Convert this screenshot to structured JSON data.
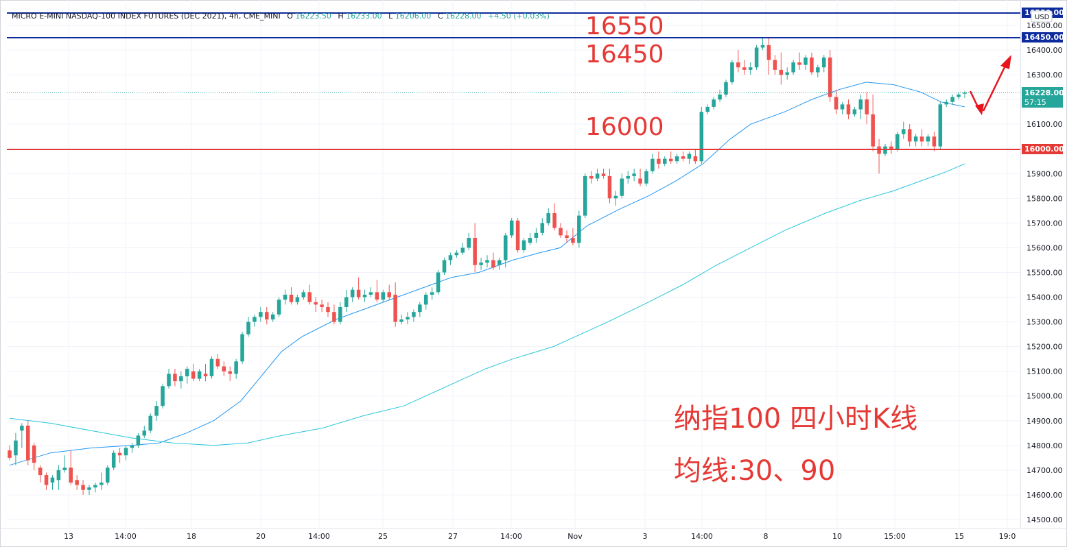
{
  "header": {
    "symbol": "MICRO E-MINI NASDAQ-100 INDEX FUTURES (DEC 2021), 4h, CME_MINI",
    "o_label": "O",
    "o_value": "16223.50",
    "h_label": "H",
    "h_value": "16233.00",
    "l_label": "L",
    "l_value": "16206.00",
    "c_label": "C",
    "c_value": "16228.00",
    "change": "+4.50 (+0.03%)"
  },
  "currency": "USD",
  "price_tags": {
    "top_line": "16550.00",
    "upper_line": "16450.00",
    "last_price": "16228.00",
    "countdown": "57:15",
    "support_line": "16000.00"
  },
  "annotations": {
    "label_16550": "16550",
    "label_16450": "16450",
    "label_16000": "16000",
    "note_line1": "纳指100 四小时K线",
    "note_line2": "均线:30、90"
  },
  "colors": {
    "up": "#26a69a",
    "down": "#ef5350",
    "ma30": "#2196f3",
    "ma90": "#26c6da",
    "blue_line": "#0d2b9c",
    "red_line": "#e53935",
    "arrow": "#e8141b"
  },
  "chart_data": {
    "type": "candlestick",
    "title": "MICRO E-MINI NASDAQ-100 INDEX FUTURES (DEC 2021), 4h, CME_MINI",
    "y_range": [
      14450,
      16600
    ],
    "y_ticks": [
      14500,
      14600,
      14700,
      14800,
      14900,
      15000,
      15100,
      15200,
      15300,
      15400,
      15500,
      15600,
      15700,
      15800,
      15900,
      16000,
      16100,
      16200,
      16300,
      16400,
      16500
    ],
    "x_tick_labels": [
      "13",
      "14:00",
      "18",
      "20",
      "14:00",
      "25",
      "27",
      "14:00",
      "Nov",
      "3",
      "14:00",
      "8",
      "10",
      "15:00",
      "15",
      "19:0"
    ],
    "horizontal_lines": [
      {
        "price": 16550,
        "color": "blue"
      },
      {
        "price": 16450,
        "color": "blue"
      },
      {
        "price": 16000,
        "color": "red"
      }
    ],
    "series": [
      {
        "name": "MA 30",
        "points": [
          [
            0,
            14720
          ],
          [
            60,
            14770
          ],
          [
            120,
            14790
          ],
          [
            180,
            14800
          ],
          [
            220,
            14810
          ],
          [
            260,
            14850
          ],
          [
            300,
            14900
          ],
          [
            340,
            14980
          ],
          [
            370,
            15080
          ],
          [
            400,
            15180
          ],
          [
            430,
            15240
          ],
          [
            480,
            15310
          ],
          [
            520,
            15350
          ],
          [
            560,
            15390
          ],
          [
            610,
            15440
          ],
          [
            650,
            15480
          ],
          [
            690,
            15500
          ],
          [
            740,
            15550
          ],
          [
            780,
            15580
          ],
          [
            810,
            15600
          ],
          [
            850,
            15690
          ],
          [
            900,
            15760
          ],
          [
            940,
            15810
          ],
          [
            980,
            15870
          ],
          [
            1020,
            15940
          ],
          [
            1060,
            16040
          ],
          [
            1090,
            16100
          ],
          [
            1140,
            16150
          ],
          [
            1180,
            16200
          ],
          [
            1220,
            16240
          ],
          [
            1260,
            16270
          ],
          [
            1300,
            16260
          ],
          [
            1340,
            16230
          ],
          [
            1370,
            16190
          ],
          [
            1405,
            16170
          ]
        ]
      },
      {
        "name": "MA 90",
        "points": [
          [
            0,
            14910
          ],
          [
            60,
            14890
          ],
          [
            120,
            14860
          ],
          [
            180,
            14830
          ],
          [
            240,
            14810
          ],
          [
            300,
            14800
          ],
          [
            350,
            14810
          ],
          [
            400,
            14840
          ],
          [
            460,
            14870
          ],
          [
            520,
            14920
          ],
          [
            580,
            14960
          ],
          [
            620,
            15010
          ],
          [
            660,
            15060
          ],
          [
            700,
            15110
          ],
          [
            740,
            15150
          ],
          [
            800,
            15200
          ],
          [
            840,
            15250
          ],
          [
            880,
            15300
          ],
          [
            940,
            15380
          ],
          [
            990,
            15450
          ],
          [
            1040,
            15530
          ],
          [
            1090,
            15600
          ],
          [
            1140,
            15670
          ],
          [
            1200,
            15740
          ],
          [
            1250,
            15790
          ],
          [
            1300,
            15830
          ],
          [
            1350,
            15880
          ],
          [
            1380,
            15910
          ],
          [
            1405,
            15940
          ]
        ]
      }
    ],
    "candles": [
      [
        14780,
        14800,
        14750,
        14740
      ],
      [
        14760,
        14850,
        14820,
        14720
      ],
      [
        14860,
        14890,
        14880,
        14790
      ],
      [
        14880,
        14900,
        14740,
        14720
      ],
      [
        14800,
        14810,
        14730,
        14700
      ],
      [
        14710,
        14720,
        14680,
        14650
      ],
      [
        14680,
        14690,
        14640,
        14620
      ],
      [
        14650,
        14680,
        14670,
        14620
      ],
      [
        14660,
        14720,
        14700,
        14620
      ],
      [
        14700,
        14760,
        14710,
        14690
      ],
      [
        14710,
        14780,
        14650,
        14640
      ],
      [
        14660,
        14680,
        14640,
        14620
      ],
      [
        14640,
        14660,
        14620,
        14600
      ],
      [
        14620,
        14640,
        14630,
        14600
      ],
      [
        14630,
        14650,
        14640,
        14610
      ],
      [
        14640,
        14690,
        14650,
        14620
      ],
      [
        14650,
        14720,
        14710,
        14640
      ],
      [
        14710,
        14780,
        14770,
        14700
      ],
      [
        14770,
        14790,
        14760,
        14730
      ],
      [
        14760,
        14800,
        14790,
        14740
      ],
      [
        14790,
        14810,
        14800,
        14770
      ],
      [
        14800,
        14850,
        14840,
        14790
      ],
      [
        14840,
        14880,
        14860,
        14830
      ],
      [
        14860,
        14930,
        14920,
        14850
      ],
      [
        14920,
        14980,
        14960,
        14900
      ],
      [
        14960,
        15050,
        15040,
        14950
      ],
      [
        15040,
        15110,
        15090,
        15030
      ],
      [
        15090,
        15110,
        15060,
        15040
      ],
      [
        15060,
        15100,
        15080,
        15030
      ],
      [
        15080,
        15120,
        15110,
        15050
      ],
      [
        15100,
        15130,
        15070,
        15060
      ],
      [
        15070,
        15110,
        15100,
        15060
      ],
      [
        15090,
        15130,
        15080,
        15060
      ],
      [
        15080,
        15160,
        15150,
        15070
      ],
      [
        15150,
        15170,
        15120,
        15110
      ],
      [
        15120,
        15140,
        15100,
        15080
      ],
      [
        15100,
        15120,
        15090,
        15060
      ],
      [
        15090,
        15150,
        15140,
        15070
      ],
      [
        15140,
        15260,
        15250,
        15130
      ],
      [
        15250,
        15320,
        15300,
        15240
      ],
      [
        15300,
        15330,
        15320,
        15280
      ],
      [
        15320,
        15360,
        15340,
        15300
      ],
      [
        15340,
        15360,
        15310,
        15290
      ],
      [
        15310,
        15340,
        15330,
        15300
      ],
      [
        15330,
        15400,
        15390,
        15320
      ],
      [
        15390,
        15430,
        15410,
        15370
      ],
      [
        15410,
        15440,
        15380,
        15370
      ],
      [
        15380,
        15410,
        15400,
        15370
      ],
      [
        15400,
        15430,
        15420,
        15390
      ],
      [
        15420,
        15450,
        15380,
        15370
      ],
      [
        15380,
        15400,
        15370,
        15340
      ],
      [
        15370,
        15390,
        15360,
        15340
      ],
      [
        15360,
        15380,
        15340,
        15320
      ],
      [
        15340,
        15370,
        15300,
        15290
      ],
      [
        15300,
        15380,
        15360,
        15290
      ],
      [
        15360,
        15430,
        15400,
        15340
      ],
      [
        15400,
        15440,
        15430,
        15380
      ],
      [
        15430,
        15480,
        15400,
        15390
      ],
      [
        15400,
        15430,
        15410,
        15380
      ],
      [
        15410,
        15440,
        15420,
        15400
      ],
      [
        15420,
        15470,
        15390,
        15380
      ],
      [
        15390,
        15430,
        15420,
        15380
      ],
      [
        15420,
        15450,
        15400,
        15390
      ],
      [
        15410,
        15460,
        15300,
        15280
      ],
      [
        15300,
        15330,
        15310,
        15290
      ],
      [
        15310,
        15340,
        15320,
        15290
      ],
      [
        15320,
        15350,
        15340,
        15300
      ],
      [
        15340,
        15380,
        15370,
        15320
      ],
      [
        15370,
        15420,
        15410,
        15350
      ],
      [
        15410,
        15440,
        15420,
        15390
      ],
      [
        15420,
        15510,
        15500,
        15410
      ],
      [
        15500,
        15560,
        15550,
        15490
      ],
      [
        15550,
        15580,
        15570,
        15530
      ],
      [
        15570,
        15590,
        15580,
        15560
      ],
      [
        15580,
        15620,
        15600,
        15570
      ],
      [
        15600,
        15660,
        15640,
        15590
      ],
      [
        15640,
        15700,
        15530,
        15500
      ],
      [
        15530,
        15560,
        15540,
        15510
      ],
      [
        15540,
        15570,
        15550,
        15520
      ],
      [
        15550,
        15580,
        15520,
        15510
      ],
      [
        15530,
        15560,
        15550,
        15510
      ],
      [
        15550,
        15660,
        15650,
        15520
      ],
      [
        15650,
        15720,
        15710,
        15640
      ],
      [
        15710,
        15720,
        15590,
        15580
      ],
      [
        15590,
        15640,
        15630,
        15580
      ],
      [
        15620,
        15660,
        15640,
        15610
      ],
      [
        15640,
        15680,
        15660,
        15620
      ],
      [
        15660,
        15720,
        15700,
        15650
      ],
      [
        15700,
        15760,
        15740,
        15690
      ],
      [
        15740,
        15780,
        15680,
        15670
      ],
      [
        15680,
        15700,
        15650,
        15640
      ],
      [
        15650,
        15670,
        15640,
        15620
      ],
      [
        15640,
        15680,
        15620,
        15610
      ],
      [
        15620,
        15750,
        15730,
        15600
      ],
      [
        15730,
        15900,
        15890,
        15720
      ],
      [
        15890,
        15910,
        15880,
        15860
      ],
      [
        15880,
        15920,
        15900,
        15870
      ],
      [
        15900,
        15920,
        15890,
        15880
      ],
      [
        15890,
        15920,
        15800,
        15780
      ],
      [
        15800,
        15830,
        15810,
        15770
      ],
      [
        15810,
        15900,
        15880,
        15800
      ],
      [
        15880,
        15910,
        15890,
        15860
      ],
      [
        15890,
        15920,
        15900,
        15870
      ],
      [
        15880,
        15920,
        15860,
        15850
      ],
      [
        15860,
        15920,
        15910,
        15850
      ],
      [
        15910,
        15980,
        15960,
        15900
      ],
      [
        15960,
        15990,
        15940,
        15920
      ],
      [
        15940,
        15970,
        15960,
        15930
      ],
      [
        15960,
        15990,
        15950,
        15940
      ],
      [
        15950,
        15980,
        15970,
        15940
      ],
      [
        15970,
        15990,
        15960,
        15950
      ],
      [
        15960,
        15990,
        15980,
        15940
      ],
      [
        15970,
        16000,
        15950,
        15940
      ],
      [
        15950,
        16170,
        16150,
        15940
      ],
      [
        16150,
        16180,
        16170,
        16140
      ],
      [
        16170,
        16210,
        16200,
        16160
      ],
      [
        16200,
        16240,
        16220,
        16190
      ],
      [
        16220,
        16280,
        16270,
        16210
      ],
      [
        16270,
        16360,
        16350,
        16260
      ],
      [
        16350,
        16400,
        16330,
        16310
      ],
      [
        16330,
        16360,
        16320,
        16300
      ],
      [
        16320,
        16350,
        16330,
        16300
      ],
      [
        16330,
        16420,
        16410,
        16320
      ],
      [
        16410,
        16450,
        16420,
        16400
      ],
      [
        16420,
        16450,
        16360,
        16300
      ],
      [
        16360,
        16380,
        16320,
        16300
      ],
      [
        16320,
        16390,
        16300,
        16260
      ],
      [
        16300,
        16330,
        16310,
        16280
      ],
      [
        16310,
        16360,
        16350,
        16300
      ],
      [
        16350,
        16390,
        16340,
        16320
      ],
      [
        16340,
        16380,
        16370,
        16320
      ],
      [
        16370,
        16390,
        16310,
        16300
      ],
      [
        16310,
        16340,
        16330,
        16290
      ],
      [
        16330,
        16380,
        16370,
        16310
      ],
      [
        16370,
        16400,
        16210,
        16190
      ],
      [
        16210,
        16240,
        16160,
        16140
      ],
      [
        16160,
        16190,
        16180,
        16140
      ],
      [
        16180,
        16200,
        16140,
        16120
      ],
      [
        16140,
        16170,
        16160,
        16130
      ],
      [
        16160,
        16220,
        16200,
        16120
      ],
      [
        16200,
        16230,
        16140,
        16100
      ],
      [
        16140,
        16220,
        16010,
        15990
      ],
      [
        16010,
        16040,
        15980,
        15900
      ],
      [
        15980,
        16020,
        16010,
        15970
      ],
      [
        16010,
        16030,
        16000,
        15980
      ],
      [
        16000,
        16070,
        16060,
        15990
      ],
      [
        16060,
        16110,
        16080,
        16040
      ],
      [
        16080,
        16100,
        16030,
        16010
      ],
      [
        16030,
        16060,
        16050,
        16010
      ],
      [
        16050,
        16080,
        16030,
        16010
      ],
      [
        16030,
        16060,
        16050,
        16010
      ],
      [
        16050,
        16070,
        16010,
        15990
      ],
      [
        16010,
        16190,
        16180,
        16000
      ],
      [
        16180,
        16200,
        16190,
        16170
      ],
      [
        16190,
        16220,
        16210,
        16180
      ],
      [
        16210,
        16230,
        16220,
        16200
      ],
      [
        16223.5,
        16233,
        16228,
        16206
      ]
    ]
  }
}
